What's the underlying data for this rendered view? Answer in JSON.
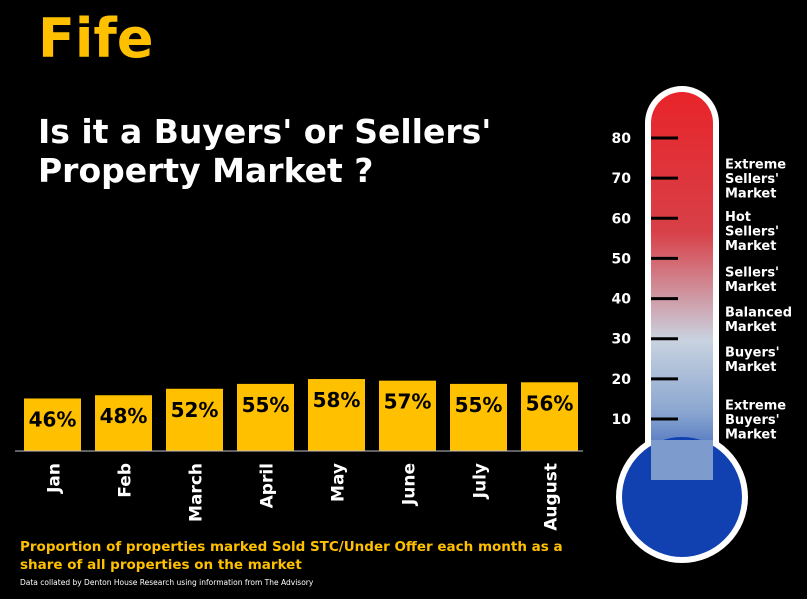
{
  "header": {
    "region": "Fife",
    "headline_line1": "Is it a Buyers' or Sellers'",
    "headline_line2": "Property Market ?"
  },
  "footer": {
    "caption_line1": "Proportion of properties marked Sold STC/Under Offer each month as a",
    "caption_line2": "share of all properties on the market",
    "source": "Data collated by Denton House Research using information from The Advisory"
  },
  "colors": {
    "bar": "#ffc000",
    "bar_label": "#000000",
    "background": "#000000",
    "text": "#ffffff",
    "accent": "#ffc000",
    "thermo_top": "#e8242a",
    "thermo_mid": "#c9d3e0",
    "thermo_bottom": "#1140b0"
  },
  "chart_data": [
    {
      "type": "bar",
      "categories": [
        "Jan",
        "Feb",
        "March",
        "April",
        "May",
        "June",
        "July",
        "August"
      ],
      "values": [
        46,
        48,
        52,
        55,
        58,
        57,
        55,
        56
      ],
      "data_labels": [
        "46%",
        "48%",
        "52%",
        "55%",
        "58%",
        "57%",
        "55%",
        "56%"
      ],
      "grid": false,
      "legend": "none"
    },
    {
      "type": "gauge",
      "scale_ticks": [
        "80",
        "70",
        "60",
        "50",
        "40",
        "30",
        "20",
        "10"
      ],
      "scale_values": [
        80,
        70,
        60,
        50,
        40,
        30,
        20,
        10
      ],
      "zones": [
        {
          "label_line1": "Extreme",
          "label_line2": "Sellers'",
          "label_line3": "Market",
          "center": 70
        },
        {
          "label_line1": "Hot",
          "label_line2": "Sellers'",
          "label_line3": "Market",
          "center": 57
        },
        {
          "label_line1": "Sellers'",
          "label_line2": "Market",
          "center": 45
        },
        {
          "label_line1": "Balanced",
          "label_line2": "Market",
          "center": 35
        },
        {
          "label_line1": "Buyers'",
          "label_line2": "Market",
          "center": 25
        },
        {
          "label_line1": "Extreme",
          "label_line2": "Buyers'",
          "label_line3": "Market",
          "center": 10
        }
      ]
    }
  ]
}
